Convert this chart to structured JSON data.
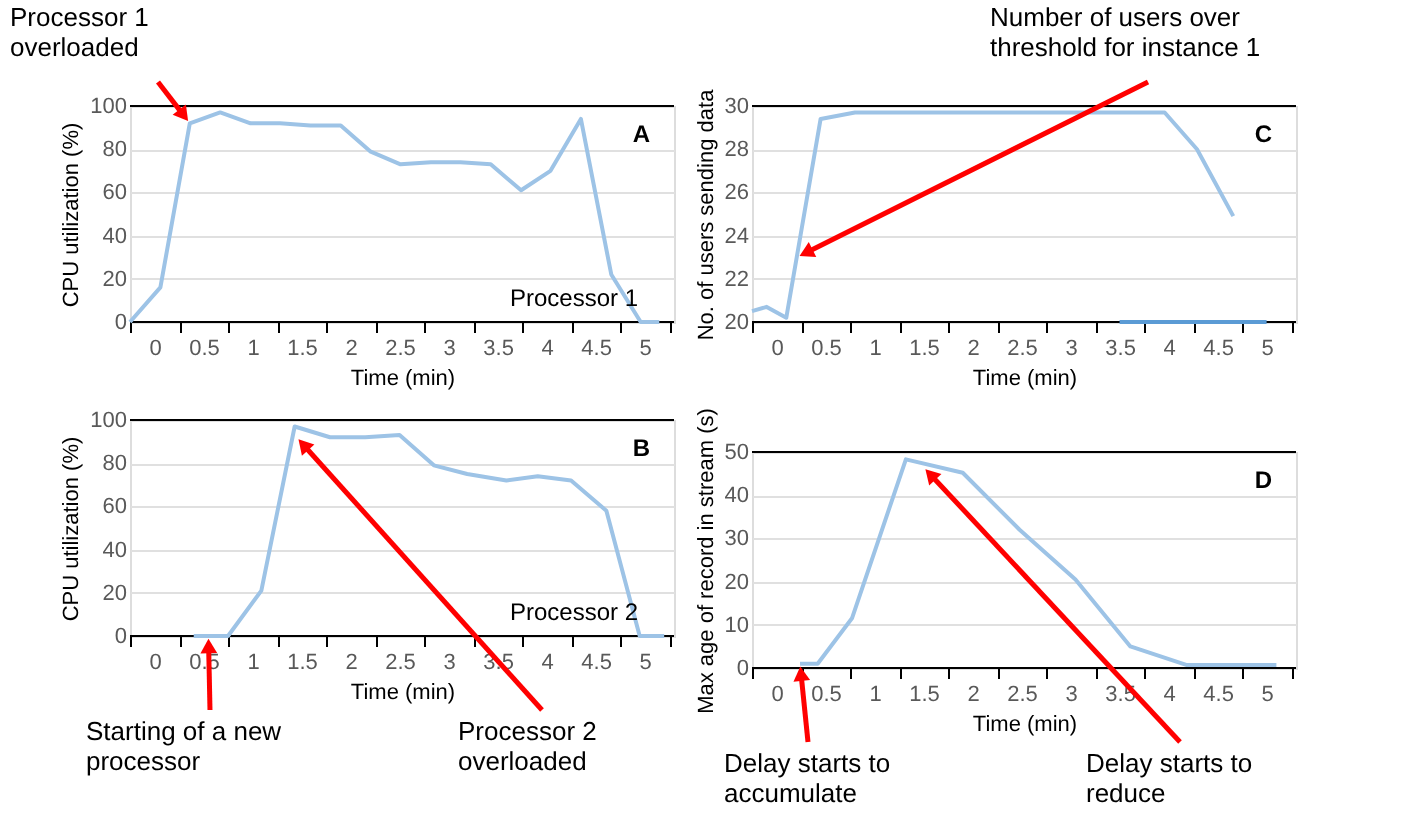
{
  "chart_data": [
    {
      "type": "line",
      "xlabel": "Time (min)",
      "ylabel": "CPU utilization (%)",
      "xlim": [
        -0.25,
        5.3
      ],
      "ylim": [
        0,
        100
      ],
      "yticks": [
        0,
        20,
        40,
        60,
        80,
        100
      ],
      "grid": "y",
      "xticks": [
        {
          "value": -0.25,
          "label": null
        },
        0,
        {
          "value": 0.25,
          "label": null
        },
        0.5,
        {
          "value": 0.75,
          "label": null
        },
        1,
        {
          "value": 1.25,
          "label": null
        },
        1.5,
        {
          "value": 1.75,
          "label": null
        },
        2,
        {
          "value": 2.25,
          "label": null
        },
        2.5,
        {
          "value": 2.75,
          "label": null
        },
        3,
        {
          "value": 3.25,
          "label": null
        },
        3.5,
        {
          "value": 3.75,
          "label": null
        },
        4,
        {
          "value": 4.25,
          "label": null
        },
        4.5,
        {
          "value": 4.75,
          "label": null
        },
        5,
        {
          "value": 5.25,
          "label": null
        }
      ],
      "series": [
        {
          "color": "#9dc3e6",
          "x": [
            -0.25,
            0.06,
            0.36,
            0.67,
            0.98,
            1.28,
            1.59,
            1.9,
            2.2,
            2.51,
            2.82,
            3.12,
            3.43,
            3.74,
            4.04,
            4.35,
            4.66,
            4.96,
            5.15
          ],
          "values": [
            0,
            16,
            92,
            97,
            92,
            92,
            91,
            91,
            79,
            73,
            74,
            74,
            73,
            61,
            70,
            94,
            22,
            0,
            0
          ]
        }
      ],
      "annotations": [
        "A",
        "Processor 1",
        {
          "text": "Processor 1\noverloaded",
          "x": 0.36,
          "y": 92
        }
      ]
    },
    {
      "type": "line",
      "xlabel": "Time (min)",
      "ylabel": "No. of users sending data",
      "xlim": [
        -0.25,
        5.3
      ],
      "ylim": [
        20,
        30
      ],
      "yticks": [
        20,
        22,
        24,
        26,
        28,
        30
      ],
      "grid": "y",
      "xticks": [
        {
          "value": -0.25,
          "label": null
        },
        0,
        {
          "value": 0.25,
          "label": null
        },
        0.5,
        {
          "value": 0.75,
          "label": null
        },
        1,
        {
          "value": 1.25,
          "label": null
        },
        1.5,
        {
          "value": 1.75,
          "label": null
        },
        2,
        {
          "value": 2.25,
          "label": null
        },
        2.5,
        {
          "value": 2.75,
          "label": null
        },
        3,
        {
          "value": 3.25,
          "label": null
        },
        3.5,
        {
          "value": 3.75,
          "label": null
        },
        4,
        {
          "value": 4.25,
          "label": null
        },
        4.5,
        {
          "value": 4.75,
          "label": null
        },
        5,
        {
          "value": 5.25,
          "label": null
        }
      ],
      "series": [
        {
          "color": "#9dc3e6",
          "x": [
            -0.25,
            -0.1,
            0.1,
            0.45,
            0.8,
            1.5,
            2.3,
            3.0,
            3.6,
            3.96,
            4.29,
            4.66
          ],
          "values": [
            20.5,
            20.7,
            20.2,
            29.4,
            29.7,
            29.7,
            29.7,
            29.7,
            29.7,
            29.7,
            28.0,
            24.9
          ]
        },
        {
          "color": "#5b9bd5",
          "x": [
            3.5,
            5.0
          ],
          "values": [
            20,
            20
          ]
        }
      ],
      "annotations": [
        "C",
        {
          "text": "Number of users over\nthreshold for instance 1",
          "x": 0.21,
          "y": 23
        }
      ]
    },
    {
      "type": "line",
      "xlabel": "Time (min)",
      "ylabel": "CPU utilization (%)",
      "xlim": [
        -0.25,
        5.3
      ],
      "ylim": [
        0,
        100
      ],
      "yticks": [
        0,
        20,
        40,
        60,
        80,
        100
      ],
      "grid": "y",
      "xticks": [
        {
          "value": -0.25,
          "label": null
        },
        0,
        {
          "value": 0.25,
          "label": null
        },
        0.5,
        {
          "value": 0.75,
          "label": null
        },
        1,
        {
          "value": 1.25,
          "label": null
        },
        1.5,
        {
          "value": 1.75,
          "label": null
        },
        2,
        {
          "value": 2.25,
          "label": null
        },
        2.5,
        {
          "value": 2.75,
          "label": null
        },
        3,
        {
          "value": 3.25,
          "label": null
        },
        3.5,
        {
          "value": 3.75,
          "label": null
        },
        4,
        {
          "value": 4.25,
          "label": null
        },
        4.5,
        {
          "value": 4.75,
          "label": null
        },
        5,
        {
          "value": 5.25,
          "label": null
        }
      ],
      "series": [
        {
          "color": "#9dc3e6",
          "x": [
            0.4,
            0.75,
            1.09,
            1.43,
            1.79,
            2.15,
            2.5,
            2.85,
            3.19,
            3.59,
            3.91,
            4.25,
            4.61,
            4.95,
            5.2
          ],
          "values": [
            0,
            0,
            21,
            97,
            92,
            92,
            93,
            79,
            75,
            72,
            74,
            72,
            58,
            0,
            0
          ]
        }
      ],
      "annotations": [
        "B",
        "Processor 2",
        {
          "text": "Starting of a new\nprocessor",
          "x": 0.55,
          "y": 0
        },
        {
          "text": "Processor 2\noverloaded",
          "x": 1.45,
          "y": 92
        }
      ]
    },
    {
      "type": "line",
      "xlabel": "Time (min)",
      "ylabel": "Max age of record in stream (s)",
      "xlim": [
        -0.25,
        5.3
      ],
      "ylim": [
        0,
        50
      ],
      "yticks": [
        0,
        10,
        20,
        30,
        40,
        50
      ],
      "grid": "y",
      "xticks": [
        {
          "value": -0.25,
          "label": null
        },
        0,
        {
          "value": 0.25,
          "label": null
        },
        0.5,
        {
          "value": 0.75,
          "label": null
        },
        1,
        {
          "value": 1.25,
          "label": null
        },
        1.5,
        {
          "value": 1.75,
          "label": null
        },
        2,
        {
          "value": 2.25,
          "label": null
        },
        2.5,
        {
          "value": 2.75,
          "label": null
        },
        3,
        {
          "value": 3.25,
          "label": null
        },
        3.5,
        {
          "value": 3.75,
          "label": null
        },
        4,
        {
          "value": 4.25,
          "label": null
        },
        4.5,
        {
          "value": 4.75,
          "label": null
        },
        5,
        {
          "value": 5.25,
          "label": null
        }
      ],
      "series": [
        {
          "color": "#9dc3e6",
          "x": [
            0.24,
            0.42,
            0.77,
            1.32,
            1.9,
            2.48,
            3.05,
            3.61,
            4.18,
            5.1
          ],
          "values": [
            1,
            1,
            11.5,
            48.3,
            45.2,
            32,
            20.5,
            5,
            0.7,
            0.7
          ]
        }
      ],
      "annotations": [
        "D",
        {
          "text": "Delay starts to\naccumulate",
          "x": 0.24,
          "y": 1
        },
        {
          "text": "Delay starts to\nreduce",
          "x": 1.5,
          "y": 46.5
        }
      ]
    }
  ]
}
